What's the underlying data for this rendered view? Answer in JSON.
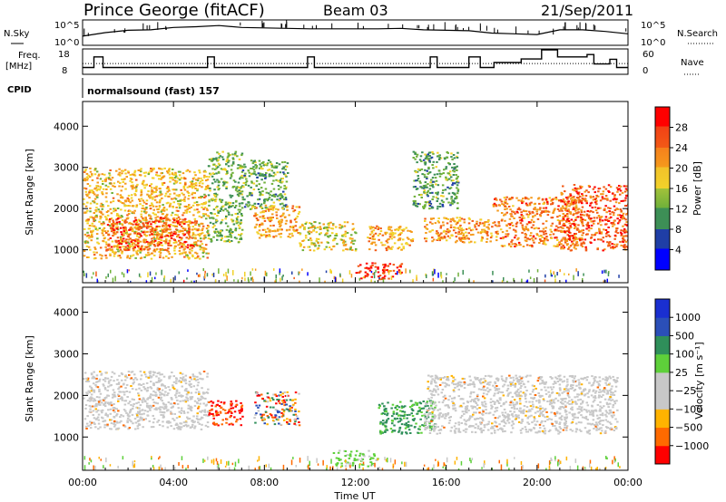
{
  "header": {
    "station": "Prince George (fitACF)",
    "beam": "Beam 03",
    "date": "21/Sep/2011"
  },
  "panel_labels": {
    "nsky": "N.Sky",
    "freq_line1": "Freq.",
    "freq_line2": "[MHz]",
    "cpid": "CPID",
    "nsearch": "N.Search",
    "nave": "Nave"
  },
  "cpid_value": "normalsound (fast) 157",
  "chart_data": [
    {
      "type": "line",
      "name_label": "noise",
      "yticks_left": [
        "10^5",
        "10^0"
      ],
      "yticks_right": [
        "10^5",
        "10^0"
      ],
      "x_hours": [
        0,
        1,
        2,
        3,
        4,
        5,
        6,
        7,
        8,
        9,
        10,
        11,
        12,
        13,
        14,
        15,
        16,
        17,
        18,
        19,
        20,
        21,
        22,
        23,
        24
      ],
      "n_sky_level": [
        0.35,
        0.5,
        0.6,
        0.62,
        0.72,
        0.75,
        0.8,
        0.72,
        0.7,
        0.68,
        0.66,
        0.66,
        0.66,
        0.66,
        0.68,
        0.62,
        0.6,
        0.58,
        0.48,
        0.45,
        0.42,
        0.62,
        0.62,
        0.55,
        0.45
      ]
    },
    {
      "type": "line",
      "name_label": "frequency-nave",
      "yticks_left": [
        "18",
        "8"
      ],
      "yticks_right": [
        "60",
        "0"
      ],
      "freq_steps": [
        [
          0.0,
          0.5,
          10.5
        ],
        [
          0.5,
          0.9,
          15.0
        ],
        [
          0.9,
          5.5,
          10.5
        ],
        [
          5.5,
          5.8,
          15.0
        ],
        [
          5.8,
          9.9,
          10.5
        ],
        [
          9.9,
          10.2,
          15.0
        ],
        [
          10.2,
          15.3,
          10.5
        ],
        [
          15.3,
          15.6,
          15.0
        ],
        [
          15.6,
          17.0,
          10.5
        ],
        [
          17.0,
          17.5,
          15.0
        ],
        [
          17.5,
          18.1,
          10.5
        ],
        [
          18.1,
          19.3,
          12.6
        ],
        [
          19.3,
          20.2,
          14.1
        ],
        [
          20.2,
          20.9,
          18.0
        ],
        [
          20.9,
          22.2,
          15.0
        ],
        [
          22.2,
          22.5,
          16.0
        ],
        [
          22.5,
          23.2,
          12.0
        ],
        [
          23.2,
          23.5,
          14.0
        ],
        [
          23.5,
          24.0,
          10.5
        ]
      ],
      "nave_value": 25
    },
    {
      "type": "heatmap",
      "quantity": "power",
      "ylabel": "Slant Range [km]",
      "yticks": [
        1000,
        2000,
        3000,
        4000
      ],
      "ylim": [
        200,
        4600
      ],
      "xlim_hours": [
        0,
        24
      ],
      "colorbar_label": "Power [dB]",
      "colorbar_ticks": [
        4,
        8,
        12,
        16,
        20,
        24,
        28
      ],
      "colorbar_range": [
        0,
        32
      ],
      "colorbar_colors": [
        "#0000ff",
        "#1f3ea6",
        "#3d8f56",
        "#6fb03a",
        "#f2d22a",
        "#f59a1c",
        "#f25a16",
        "#ff0000"
      ],
      "echo_regions": [
        {
          "x": [
            0.0,
            5.5
          ],
          "y": [
            800,
            3000
          ],
          "level": 20
        },
        {
          "x": [
            1.0,
            5.0
          ],
          "y": [
            1000,
            1800
          ],
          "level": 26
        },
        {
          "x": [
            5.5,
            7.0
          ],
          "y": [
            1200,
            3400
          ],
          "level": 14
        },
        {
          "x": [
            7.0,
            9.0
          ],
          "y": [
            2000,
            3200
          ],
          "level": 12
        },
        {
          "x": [
            7.5,
            9.5
          ],
          "y": [
            1300,
            2100
          ],
          "level": 22
        },
        {
          "x": [
            9.5,
            12.0
          ],
          "y": [
            1000,
            1700
          ],
          "level": 18
        },
        {
          "x": [
            12.0,
            14.0
          ],
          "y": [
            300,
            700
          ],
          "level": 28
        },
        {
          "x": [
            12.5,
            14.5
          ],
          "y": [
            1000,
            1600
          ],
          "level": 22
        },
        {
          "x": [
            14.5,
            16.5
          ],
          "y": [
            2000,
            3400
          ],
          "level": 12
        },
        {
          "x": [
            15.0,
            18.0
          ],
          "y": [
            1200,
            1800
          ],
          "level": 22
        },
        {
          "x": [
            18.0,
            22.0
          ],
          "y": [
            1100,
            2300
          ],
          "level": 24
        },
        {
          "x": [
            21.0,
            24.0
          ],
          "y": [
            1000,
            2600
          ],
          "level": 26
        }
      ]
    },
    {
      "type": "heatmap",
      "quantity": "velocity",
      "ylabel": "Slant Range [km]",
      "yticks": [
        1000,
        2000,
        3000,
        4000
      ],
      "ylim": [
        200,
        4600
      ],
      "xlim_hours": [
        0,
        24
      ],
      "xticks": [
        "00:00",
        "04:00",
        "08:00",
        "12:00",
        "16:00",
        "20:00",
        "00:00"
      ],
      "xlabel": "Time UT",
      "colorbar_label": "Velocity  [m s⁻¹]",
      "colorbar_ticks": [
        "1000",
        "500",
        "100",
        "25",
        "−25",
        "−100",
        "−500",
        "−1000"
      ],
      "colorbar_colors": [
        "#ff0000",
        "#ff6a00",
        "#ffb300",
        "#c8c8c8",
        "#c8c8c8",
        "#5ed03a",
        "#2f8f5a",
        "#2b4fb8",
        "#1a2fd0"
      ],
      "echo_regions": [
        {
          "x": [
            0.0,
            5.5
          ],
          "y": [
            1200,
            2600
          ],
          "kind": "ground"
        },
        {
          "x": [
            5.5,
            7.0
          ],
          "y": [
            1300,
            1900
          ],
          "kind": "neg-high"
        },
        {
          "x": [
            7.5,
            9.5
          ],
          "y": [
            1300,
            2100
          ],
          "kind": "mixed"
        },
        {
          "x": [
            13.0,
            15.5
          ],
          "y": [
            1100,
            1900
          ],
          "kind": "pos-mid"
        },
        {
          "x": [
            15.0,
            23.5
          ],
          "y": [
            1100,
            2500
          ],
          "kind": "ground"
        },
        {
          "x": [
            11.0,
            13.0
          ],
          "y": [
            300,
            700
          ],
          "kind": "pos-low"
        }
      ]
    }
  ]
}
